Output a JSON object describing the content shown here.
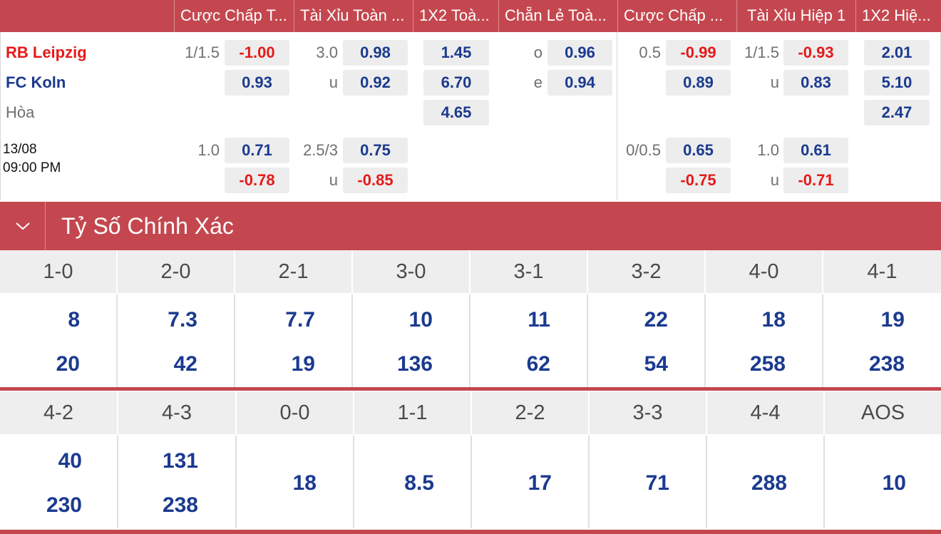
{
  "header": {
    "columns": [
      "Cược Chấp T...",
      "Tài Xỉu Toàn ...",
      "1X2 Toà...",
      "Chẵn Lẻ Toà...",
      "Cược Chấp ...",
      "Tài Xỉu Hiệp 1",
      "1X2 Hiệ..."
    ]
  },
  "match": {
    "home": "RB Leipzig",
    "away": "FC Koln",
    "draw": "Hòa",
    "date": "13/08",
    "time": "09:00 PM",
    "home_color": "#e61919",
    "away_color": "#1b3a8f",
    "row1": {
      "hdp_line": "1/1.5",
      "hdp_home": "-1.00",
      "hdp_away": "0.93",
      "ou_line": "3.0",
      "ou_over": "0.98",
      "ou_under_label": "u",
      "ou_under": "0.92",
      "x12_home": "1.45",
      "x12_away": "6.70",
      "x12_draw": "4.65",
      "oe_odd_label": "o",
      "oe_odd": "0.96",
      "oe_even_label": "e",
      "oe_even": "0.94",
      "h1_hdp_line": "0.5",
      "h1_hdp_home": "-0.99",
      "h1_hdp_away": "0.89",
      "h1_ou_line": "1/1.5",
      "h1_ou_over": "-0.93",
      "h1_ou_under_label": "u",
      "h1_ou_under": "0.83",
      "h1_x12_home": "2.01",
      "h1_x12_away": "5.10",
      "h1_x12_draw": "2.47"
    },
    "row2": {
      "hdp_line": "1.0",
      "hdp_home": "0.71",
      "hdp_away": "-0.78",
      "ou_line": "2.5/3",
      "ou_over": "0.75",
      "ou_under_label": "u",
      "ou_under": "-0.85",
      "h1_hdp_line": "0/0.5",
      "h1_hdp_home": "0.65",
      "h1_hdp_away": "-0.75",
      "h1_ou_line": "1.0",
      "h1_ou_over": "0.61",
      "h1_ou_under_label": "u",
      "h1_ou_under": "-0.71"
    }
  },
  "exact_score": {
    "title": "Tỷ Số Chính Xác",
    "row1": [
      {
        "score": "1-0",
        "top": "8",
        "bottom": "20"
      },
      {
        "score": "2-0",
        "top": "7.3",
        "bottom": "42"
      },
      {
        "score": "2-1",
        "top": "7.7",
        "bottom": "19"
      },
      {
        "score": "3-0",
        "top": "10",
        "bottom": "136"
      },
      {
        "score": "3-1",
        "top": "11",
        "bottom": "62"
      },
      {
        "score": "3-2",
        "top": "22",
        "bottom": "54"
      },
      {
        "score": "4-0",
        "top": "18",
        "bottom": "258"
      },
      {
        "score": "4-1",
        "top": "19",
        "bottom": "238"
      }
    ],
    "row2": [
      {
        "score": "4-2",
        "top": "40",
        "bottom": "230"
      },
      {
        "score": "4-3",
        "top": "131",
        "bottom": "238"
      },
      {
        "score": "0-0",
        "single": "18"
      },
      {
        "score": "1-1",
        "single": "8.5"
      },
      {
        "score": "2-2",
        "single": "17"
      },
      {
        "score": "3-3",
        "single": "71"
      },
      {
        "score": "4-4",
        "single": "288"
      },
      {
        "score": "AOS",
        "single": "10"
      }
    ]
  }
}
